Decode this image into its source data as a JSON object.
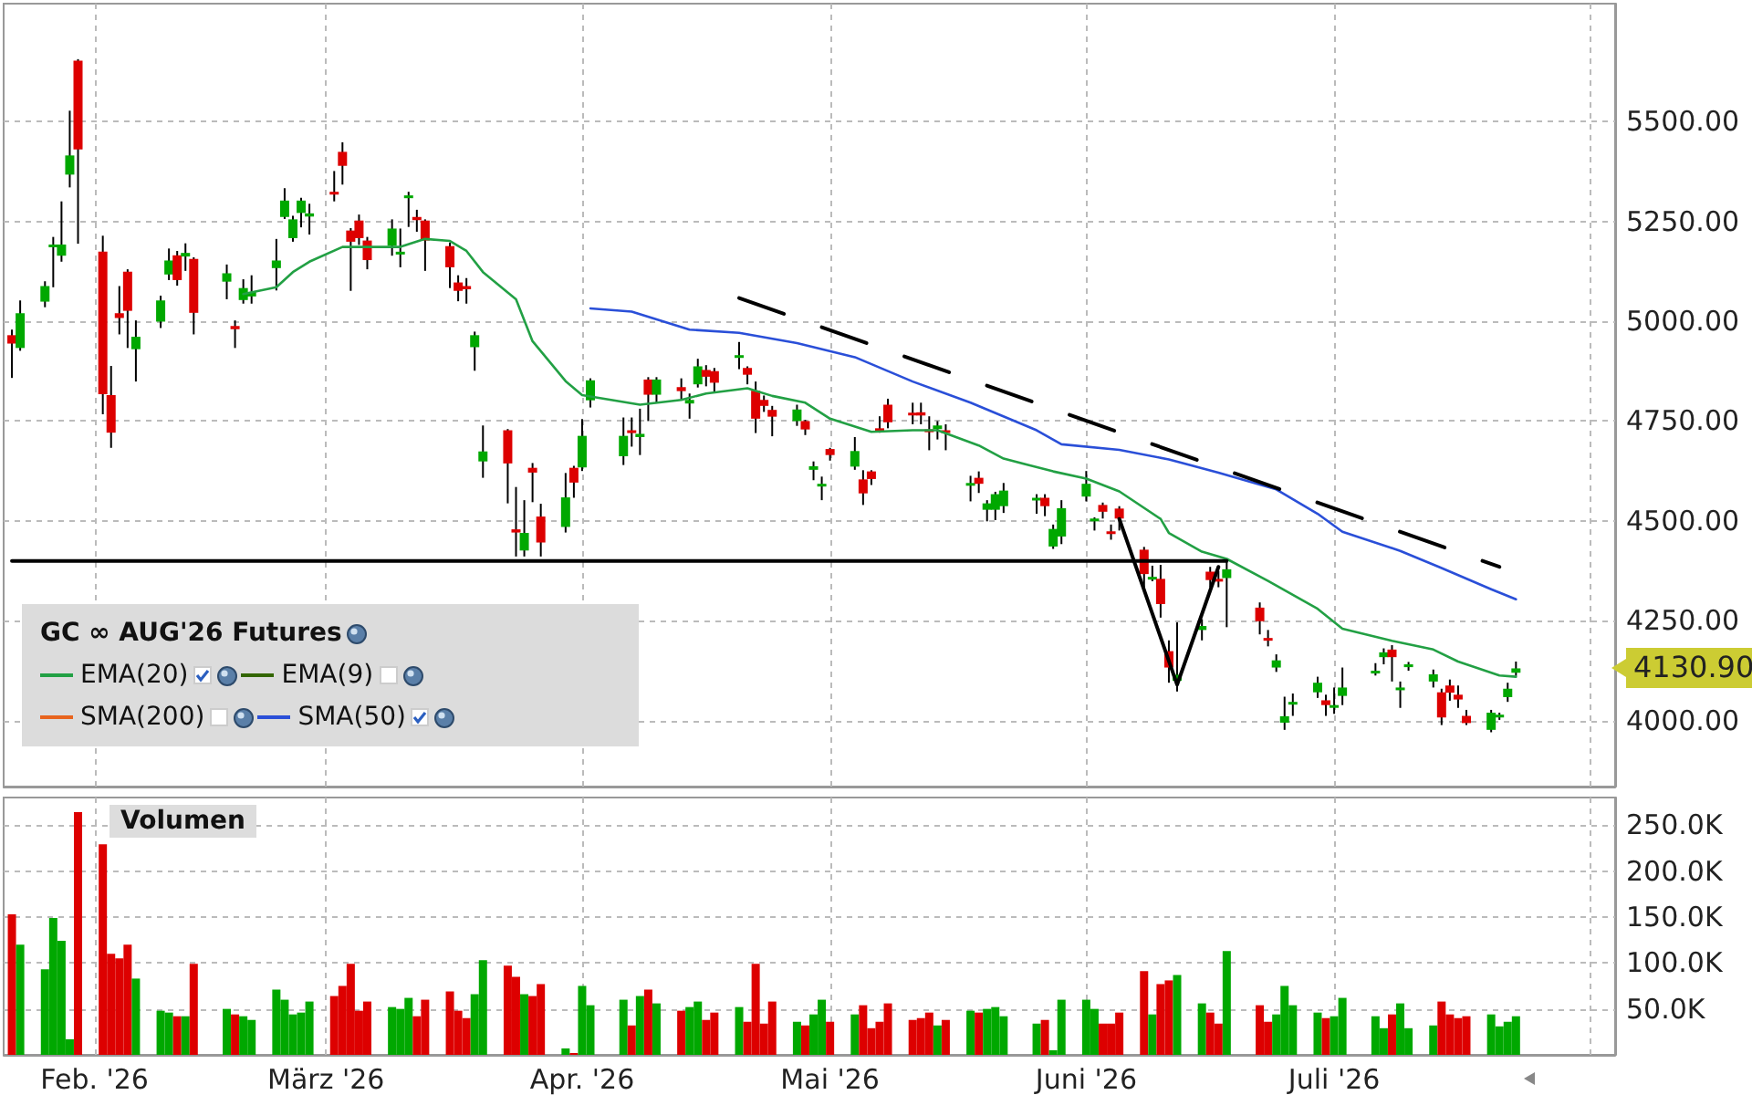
{
  "chart_data": [
    {
      "type": "candlestick",
      "legend_title": "GC ∞ AUG'26 Futures",
      "legend": "bottom left",
      "tick_labels": "y",
      "grid": true,
      "marker": "none",
      "x": [
        "2026-01-22",
        "2026-01-23",
        "2026-01-26",
        "2026-01-27",
        "2026-01-28",
        "2026-01-29",
        "2026-01-30",
        "2026-02-02",
        "2026-02-03",
        "2026-02-04",
        "2026-02-05",
        "2026-02-06",
        "2026-02-09",
        "2026-02-10",
        "2026-02-11",
        "2026-02-12",
        "2026-02-13",
        "2026-02-17",
        "2026-02-18",
        "2026-02-19",
        "2026-02-20",
        "2026-02-23",
        "2026-02-24",
        "2026-02-25",
        "2026-02-26",
        "2026-02-27",
        "2026-03-02",
        "2026-03-03",
        "2026-03-04",
        "2026-03-05",
        "2026-03-06",
        "2026-03-09",
        "2026-03-10",
        "2026-03-11",
        "2026-03-12",
        "2026-03-13",
        "2026-03-16",
        "2026-03-17",
        "2026-03-18",
        "2026-03-19",
        "2026-03-20",
        "2026-03-23",
        "2026-03-24",
        "2026-03-25",
        "2026-03-26",
        "2026-03-27",
        "2026-03-30",
        "2026-03-31",
        "2026-04-01",
        "2026-04-02",
        "2026-04-06",
        "2026-04-07",
        "2026-04-08",
        "2026-04-09",
        "2026-04-10",
        "2026-04-13",
        "2026-04-14",
        "2026-04-15",
        "2026-04-16",
        "2026-04-17",
        "2026-04-20",
        "2026-04-21",
        "2026-04-22",
        "2026-04-23",
        "2026-04-24",
        "2026-04-27",
        "2026-04-28",
        "2026-04-29",
        "2026-04-30",
        "2026-05-01",
        "2026-05-04",
        "2026-05-05",
        "2026-05-06",
        "2026-05-07",
        "2026-05-08",
        "2026-05-11",
        "2026-05-12",
        "2026-05-13",
        "2026-05-14",
        "2026-05-15",
        "2026-05-18",
        "2026-05-19",
        "2026-05-20",
        "2026-05-21",
        "2026-05-22",
        "2026-05-26",
        "2026-05-27",
        "2026-05-28",
        "2026-05-29",
        "2026-06-01",
        "2026-06-02",
        "2026-06-03",
        "2026-06-04",
        "2026-06-05",
        "2026-06-08",
        "2026-06-09",
        "2026-06-10",
        "2026-06-11",
        "2026-06-12",
        "2026-06-15",
        "2026-06-16",
        "2026-06-17",
        "2026-06-18",
        "2026-06-22",
        "2026-06-23",
        "2026-06-24",
        "2026-06-25",
        "2026-06-26",
        "2026-06-29",
        "2026-06-30",
        "2026-07-01",
        "2026-07-02",
        "2026-07-06",
        "2026-07-07",
        "2026-07-08",
        "2026-07-09",
        "2026-07-10",
        "2026-07-13",
        "2026-07-14",
        "2026-07-15",
        "2026-07-16",
        "2026-07-17",
        "2026-07-20",
        "2026-07-21",
        "2026-07-22",
        "2026-07-23"
      ],
      "ohlc": [
        [
          4965,
          4979,
          4858,
          4944
        ],
        [
          4933,
          5052,
          4926,
          5020
        ],
        [
          5049,
          5100,
          5035,
          5088
        ],
        [
          5185,
          5211,
          5085,
          5192
        ],
        [
          5164,
          5300,
          5149,
          5192
        ],
        [
          5367,
          5527,
          5335,
          5415
        ],
        [
          5652,
          5656,
          5194,
          5430
        ],
        [
          5174,
          5214,
          4767,
          4817
        ],
        [
          4815,
          4888,
          4683,
          4721
        ],
        [
          5020,
          5088,
          4967,
          5008
        ],
        [
          5124,
          5130,
          4933,
          5026
        ],
        [
          4930,
          5002,
          4849,
          4961
        ],
        [
          4999,
          5064,
          4983,
          5052
        ],
        [
          5117,
          5182,
          5103,
          5152
        ],
        [
          5165,
          5176,
          5089,
          5103
        ],
        [
          5162,
          5195,
          5126,
          5171
        ],
        [
          5156,
          5160,
          4967,
          5021
        ],
        [
          5099,
          5142,
          5055,
          5120
        ],
        [
          4988,
          5002,
          4933,
          4980
        ],
        [
          5053,
          5105,
          5044,
          5083
        ],
        [
          5062,
          5115,
          5044,
          5073
        ],
        [
          5133,
          5206,
          5077,
          5152
        ],
        [
          5261,
          5333,
          5256,
          5302
        ],
        [
          5208,
          5264,
          5199,
          5255
        ],
        [
          5271,
          5309,
          5235,
          5302
        ],
        [
          5262,
          5294,
          5217,
          5270
        ],
        [
          5324,
          5376,
          5300,
          5317
        ],
        [
          5424,
          5448,
          5342,
          5389
        ],
        [
          5227,
          5233,
          5076,
          5199
        ],
        [
          5252,
          5267,
          5191,
          5208
        ],
        [
          5202,
          5211,
          5130,
          5153
        ],
        [
          5189,
          5255,
          5164,
          5232
        ],
        [
          5167,
          5232,
          5135,
          5174
        ],
        [
          5308,
          5324,
          5236,
          5315
        ],
        [
          5261,
          5279,
          5224,
          5253
        ],
        [
          5252,
          5255,
          5126,
          5202
        ],
        [
          5188,
          5197,
          5083,
          5135
        ],
        [
          5097,
          5115,
          5050,
          5076
        ],
        [
          5088,
          5108,
          5044,
          5080
        ],
        [
          4935,
          4974,
          4876,
          4965
        ],
        [
          4649,
          4739,
          4608,
          4674
        ],
        [
          4727,
          4730,
          4544,
          4644
        ],
        [
          4479,
          4585,
          4411,
          4471
        ],
        [
          4426,
          4552,
          4411,
          4470
        ],
        [
          4633,
          4645,
          4547,
          4621
        ],
        [
          4511,
          4543,
          4411,
          4446
        ],
        [
          4485,
          4620,
          4471,
          4559
        ],
        [
          4633,
          4638,
          4558,
          4596
        ],
        [
          4634,
          4755,
          4625,
          4713
        ],
        [
          4802,
          4857,
          4784,
          4852
        ],
        [
          4662,
          4759,
          4640,
          4713
        ],
        [
          4727,
          4759,
          4686,
          4720
        ],
        [
          4710,
          4781,
          4665,
          4718
        ],
        [
          4854,
          4860,
          4750,
          4816
        ],
        [
          4816,
          4860,
          4796,
          4854
        ],
        [
          4835,
          4857,
          4803,
          4825
        ],
        [
          4794,
          4819,
          4756,
          4803
        ],
        [
          4842,
          4906,
          4834,
          4887
        ],
        [
          4878,
          4890,
          4837,
          4861
        ],
        [
          4875,
          4883,
          4823,
          4846
        ],
        [
          4909,
          4948,
          4880,
          4915
        ],
        [
          4883,
          4887,
          4842,
          4866
        ],
        [
          4826,
          4849,
          4720,
          4756
        ],
        [
          4803,
          4814,
          4773,
          4788
        ],
        [
          4778,
          4788,
          4712,
          4761
        ],
        [
          4750,
          4791,
          4738,
          4779
        ],
        [
          4750,
          4753,
          4715,
          4729
        ],
        [
          4628,
          4649,
          4602,
          4637
        ],
        [
          4587,
          4611,
          4552,
          4593
        ],
        [
          4680,
          4683,
          4651,
          4665
        ],
        [
          4636,
          4710,
          4628,
          4675
        ],
        [
          4604,
          4627,
          4540,
          4569
        ],
        [
          4624,
          4627,
          4590,
          4605
        ],
        [
          4732,
          4762,
          4721,
          4726
        ],
        [
          4791,
          4806,
          4732,
          4747
        ],
        [
          4771,
          4796,
          4742,
          4765
        ],
        [
          4772,
          4796,
          4742,
          4764
        ],
        [
          4729,
          4762,
          4677,
          4724
        ],
        [
          4730,
          4750,
          4704,
          4739
        ],
        [
          4727,
          4742,
          4677,
          4721
        ],
        [
          4589,
          4613,
          4549,
          4595
        ],
        [
          4608,
          4624,
          4570,
          4593
        ],
        [
          4528,
          4552,
          4499,
          4544
        ],
        [
          4528,
          4573,
          4502,
          4567
        ],
        [
          4537,
          4595,
          4520,
          4576
        ],
        [
          4552,
          4567,
          4518,
          4558
        ],
        [
          4558,
          4567,
          4512,
          4537
        ],
        [
          4436,
          4491,
          4430,
          4480
        ],
        [
          4461,
          4552,
          4442,
          4532
        ],
        [
          4561,
          4625,
          4549,
          4593
        ],
        [
          4499,
          4509,
          4476,
          4506
        ],
        [
          4540,
          4546,
          4506,
          4523
        ],
        [
          4474,
          4491,
          4453,
          4470
        ],
        [
          4531,
          4537,
          4476,
          4506
        ],
        [
          4428,
          4435,
          4334,
          4367
        ],
        [
          4354,
          4388,
          4349,
          4360
        ],
        [
          4355,
          4390,
          4258,
          4292
        ],
        [
          4174,
          4201,
          4095,
          4133
        ],
        [
          4100,
          4246,
          4073,
          4115
        ],
        [
          4227,
          4254,
          4201,
          4237
        ],
        [
          4373,
          4385,
          4334,
          4352
        ],
        [
          4355,
          4375,
          4334,
          4349
        ],
        [
          4357,
          4397,
          4234,
          4379
        ],
        [
          4283,
          4296,
          4216,
          4249
        ],
        [
          4207,
          4227,
          4186,
          4201
        ],
        [
          4133,
          4166,
          4122,
          4151
        ],
        [
          3995,
          4060,
          3977,
          4011
        ],
        [
          4041,
          4068,
          4012,
          4047
        ],
        [
          4071,
          4110,
          4057,
          4095
        ],
        [
          4051,
          4065,
          4012,
          4039
        ],
        [
          4033,
          4083,
          4017,
          4039
        ],
        [
          4062,
          4133,
          4039,
          4083
        ],
        [
          4119,
          4144,
          4113,
          4125
        ],
        [
          4159,
          4181,
          4141,
          4171
        ],
        [
          4178,
          4189,
          4098,
          4159
        ],
        [
          4079,
          4098,
          4032,
          4083
        ],
        [
          4134,
          4147,
          4125,
          4141
        ],
        [
          4098,
          4128,
          4083,
          4116
        ],
        [
          4071,
          4080,
          3989,
          4008
        ],
        [
          4088,
          4103,
          4050,
          4070
        ],
        [
          4065,
          4088,
          4032,
          4053
        ],
        [
          4012,
          4027,
          3989,
          3994
        ],
        [
          3977,
          4027,
          3971,
          4020
        ],
        [
          4008,
          4020,
          4002,
          4015
        ],
        [
          4059,
          4095,
          4047,
          4080
        ],
        [
          4120,
          4148,
          4112,
          4130.9
        ]
      ],
      "colors": [
        "#dd0000",
        "#00a800",
        "#00a800",
        "#00a800",
        "#00a800",
        "#00a800",
        "#dd0000",
        "#dd0000",
        "#dd0000",
        "#dd0000",
        "#dd0000",
        "#00a800",
        "#00a800",
        "#00a800",
        "#dd0000",
        "#00a800",
        "#dd0000",
        "#00a800",
        "#dd0000",
        "#00a800",
        "#00a800",
        "#00a800",
        "#00a800",
        "#00a800",
        "#00a800",
        "#00a800",
        "#dd0000",
        "#dd0000",
        "#dd0000",
        "#dd0000",
        "#dd0000",
        "#00a800",
        "#00a800",
        "#00a800",
        "#dd0000",
        "#dd0000",
        "#dd0000",
        "#dd0000",
        "#dd0000",
        "#00a800",
        "#00a800",
        "#dd0000",
        "#dd0000",
        "#00a800",
        "#dd0000",
        "#dd0000",
        "#00a800",
        "#dd0000",
        "#00a800",
        "#00a800",
        "#00a800",
        "#dd0000",
        "#00a800",
        "#dd0000",
        "#00a800",
        "#dd0000",
        "#00a800",
        "#00a800",
        "#dd0000",
        "#dd0000",
        "#00a800",
        "#dd0000",
        "#dd0000",
        "#dd0000",
        "#dd0000",
        "#00a800",
        "#dd0000",
        "#00a800",
        "#00a800",
        "#dd0000",
        "#00a800",
        "#dd0000",
        "#dd0000",
        "#dd0000",
        "#dd0000",
        "#dd0000",
        "#dd0000",
        "#dd0000",
        "#00a800",
        "#dd0000",
        "#00a800",
        "#dd0000",
        "#00a800",
        "#00a800",
        "#00a800",
        "#00a800",
        "#dd0000",
        "#00a800",
        "#00a800",
        "#00a800",
        "#00a800",
        "#dd0000",
        "#dd0000",
        "#dd0000",
        "#dd0000",
        "#00a800",
        "#dd0000",
        "#dd0000",
        "#00a800",
        "#00a800",
        "#dd0000",
        "#dd0000",
        "#00a800",
        "#dd0000",
        "#dd0000",
        "#00a800",
        "#00a800",
        "#00a800",
        "#00a800",
        "#dd0000",
        "#00a800",
        "#00a800",
        "#00a800",
        "#00a800",
        "#dd0000",
        "#00a800",
        "#00a800",
        "#00a800",
        "#dd0000",
        "#dd0000",
        "#dd0000",
        "#dd0000",
        "#00a800",
        "#00a800",
        "#00a800",
        "#00a800"
      ],
      "series": [
        {
          "type": "line",
          "name": "EMA(20)",
          "color": "#22a044",
          "x": [
            "2026-02-19",
            "2026-02-23",
            "2026-02-25",
            "2026-02-27",
            "2026-03-03",
            "2026-03-06",
            "2026-03-10",
            "2026-03-13",
            "2026-03-16",
            "2026-03-18",
            "2026-03-20",
            "2026-03-24",
            "2026-03-26",
            "2026-03-30",
            "2026-04-01",
            "2026-04-08",
            "2026-04-13",
            "2026-04-16",
            "2026-04-21",
            "2026-04-24",
            "2026-04-28",
            "2026-05-01",
            "2026-05-06",
            "2026-05-11",
            "2026-05-14",
            "2026-05-19",
            "2026-05-22",
            "2026-05-28",
            "2026-06-01",
            "2026-06-05",
            "2026-06-10",
            "2026-06-11",
            "2026-06-15",
            "2026-06-18",
            "2026-06-23",
            "2026-06-29",
            "2026-07-02",
            "2026-07-08",
            "2026-07-13",
            "2026-07-16",
            "2026-07-21",
            "2026-07-23"
          ],
          "values": [
            5068,
            5085,
            5123,
            5149,
            5186,
            5186,
            5186,
            5206,
            5201,
            5176,
            5123,
            5055,
            4950,
            4850,
            4815,
            4791,
            4803,
            4819,
            4832,
            4813,
            4796,
            4756,
            4723,
            4727,
            4727,
            4689,
            4656,
            4624,
            4606,
            4574,
            4505,
            4470,
            4423,
            4405,
            4350,
            4280,
            4230,
            4200,
            4178,
            4148,
            4113,
            4110
          ]
        },
        {
          "type": "line",
          "name": "EMA(9)",
          "color": "#336600",
          "values": [
            null,
            null,
            null,
            null,
            null,
            null,
            null,
            null,
            null,
            null,
            null,
            null,
            null,
            null,
            null,
            null,
            null,
            null,
            null,
            null,
            null,
            null,
            null,
            null,
            null,
            null,
            null,
            null,
            null,
            null,
            null,
            null,
            null,
            null,
            null,
            null,
            null,
            null,
            null,
            null,
            null,
            null,
            null,
            null,
            null,
            null,
            null,
            null,
            null,
            null,
            null,
            null,
            null,
            null,
            null,
            null,
            null,
            null,
            null,
            null,
            null,
            null,
            null,
            null,
            null,
            null,
            null,
            null,
            null,
            null,
            null,
            null,
            null,
            null,
            null,
            null,
            null,
            null,
            null,
            null,
            null,
            null,
            null,
            null,
            null,
            null,
            null,
            null,
            null,
            null,
            null,
            null,
            null,
            null,
            null,
            null,
            null,
            null,
            null,
            null,
            null,
            null,
            null,
            null,
            null,
            null,
            null,
            null,
            null,
            null,
            null,
            null,
            null,
            null,
            null,
            null,
            null,
            null,
            null,
            null,
            null,
            null,
            null,
            null,
            null,
            null
          ]
        },
        {
          "type": "line",
          "name": "SMA(200)",
          "color": "#e8641e",
          "values": [
            null,
            null,
            null,
            null,
            null,
            null,
            null,
            null,
            null,
            null,
            null,
            null,
            null,
            null,
            null,
            null,
            null,
            null,
            null,
            null,
            null,
            null,
            null,
            null,
            null,
            null,
            null,
            null,
            null,
            null,
            null,
            null,
            null,
            null,
            null,
            null,
            null,
            null,
            null,
            null,
            null,
            null,
            null,
            null,
            null,
            null,
            null,
            null,
            null,
            null,
            null,
            null,
            null,
            null,
            null,
            null,
            null,
            null,
            null,
            null,
            null,
            null,
            null,
            null,
            null,
            null,
            null,
            null,
            null,
            null,
            null,
            null,
            null,
            null,
            null,
            null,
            null,
            null,
            null,
            null,
            null,
            null,
            null,
            null,
            null,
            null,
            null,
            null,
            null,
            null,
            null,
            null,
            null,
            null,
            null,
            null,
            null,
            null,
            null,
            null,
            null,
            null,
            null,
            null,
            null,
            null,
            null,
            null,
            null,
            null,
            null,
            null,
            null,
            null,
            null,
            null,
            null,
            null,
            null,
            null,
            null,
            null,
            null,
            null,
            null,
            null
          ]
        },
        {
          "type": "line",
          "name": "SMA(50)",
          "color": "#2a4fd8",
          "x": [
            "2026-04-02",
            "2026-04-07",
            "2026-04-14",
            "2026-04-20",
            "2026-04-27",
            "2026-05-04",
            "2026-05-11",
            "2026-05-18",
            "2026-05-26",
            "2026-05-29",
            "2026-06-05",
            "2026-06-11",
            "2026-06-17",
            "2026-06-24",
            "2026-06-29",
            "2026-07-02",
            "2026-07-09",
            "2026-07-14",
            "2026-07-20",
            "2026-07-23"
          ],
          "values": [
            5032,
            5024,
            4979,
            4971,
            4945,
            4910,
            4849,
            4796,
            4727,
            4692,
            4678,
            4654,
            4621,
            4579,
            4518,
            4473,
            4425,
            4382,
            4329,
            4304
          ]
        },
        {
          "type": "line",
          "color": "#000000",
          "x": [
            "2026-01-22",
            "2026-06-18"
          ],
          "values": [
            4400,
            4400
          ]
        },
        {
          "type": "line",
          "color": "#000000",
          "line_style": "dashed",
          "x": [
            "2026-04-20",
            "2026-07-21"
          ],
          "values": [
            5058,
            4385
          ]
        },
        {
          "type": "line",
          "color": "#000000",
          "x": [
            "2026-06-05",
            "2026-06-12",
            "2026-06-17"
          ],
          "values": [
            4505,
            4090,
            4385
          ]
        }
      ],
      "annotations": [
        "4130.90"
      ],
      "xlim": [
        "2026-01-21",
        "2026-08-04"
      ],
      "xticks": [
        {
          "value": "2026-02-01",
          "label": null
        },
        {
          "value": "2026-03-01",
          "label": null
        },
        {
          "value": "2026-04-01",
          "label": null
        },
        {
          "value": "2026-05-01",
          "label": null
        },
        {
          "value": "2026-06-01",
          "label": null
        },
        {
          "value": "2026-07-01",
          "label": null
        },
        {
          "value": "2026-08-01",
          "label": null
        }
      ],
      "ylim": [
        3835,
        5795
      ],
      "yticks": [
        {
          "value": 4000,
          "label": "4000.00"
        },
        {
          "value": 4250,
          "label": "4250.00"
        },
        {
          "value": 4500,
          "label": "4500.00"
        },
        {
          "value": 4750,
          "label": "4750.00"
        },
        {
          "value": 5000,
          "label": "5000.00"
        },
        {
          "value": 5250,
          "label": "5250.00"
        },
        {
          "value": 5500,
          "label": "5500.00"
        }
      ]
    },
    {
      "type": "bar",
      "title": "Volumen",
      "grid": true,
      "x": [
        "2026-01-22",
        "2026-01-23",
        "2026-01-26",
        "2026-01-27",
        "2026-01-28",
        "2026-01-29",
        "2026-01-30",
        "2026-02-02",
        "2026-02-03",
        "2026-02-04",
        "2026-02-05",
        "2026-02-06",
        "2026-02-09",
        "2026-02-10",
        "2026-02-11",
        "2026-02-12",
        "2026-02-13",
        "2026-02-17",
        "2026-02-18",
        "2026-02-19",
        "2026-02-20",
        "2026-02-23",
        "2026-02-24",
        "2026-02-25",
        "2026-02-26",
        "2026-02-27",
        "2026-03-02",
        "2026-03-03",
        "2026-03-04",
        "2026-03-05",
        "2026-03-06",
        "2026-03-09",
        "2026-03-10",
        "2026-03-11",
        "2026-03-12",
        "2026-03-13",
        "2026-03-16",
        "2026-03-17",
        "2026-03-18",
        "2026-03-19",
        "2026-03-20",
        "2026-03-23",
        "2026-03-24",
        "2026-03-25",
        "2026-03-26",
        "2026-03-27",
        "2026-03-30",
        "2026-03-31",
        "2026-04-01",
        "2026-04-02",
        "2026-04-06",
        "2026-04-07",
        "2026-04-08",
        "2026-04-09",
        "2026-04-10",
        "2026-04-13",
        "2026-04-14",
        "2026-04-15",
        "2026-04-16",
        "2026-04-17",
        "2026-04-20",
        "2026-04-21",
        "2026-04-22",
        "2026-04-23",
        "2026-04-24",
        "2026-04-27",
        "2026-04-28",
        "2026-04-29",
        "2026-04-30",
        "2026-05-01",
        "2026-05-04",
        "2026-05-05",
        "2026-05-06",
        "2026-05-07",
        "2026-05-08",
        "2026-05-11",
        "2026-05-12",
        "2026-05-13",
        "2026-05-14",
        "2026-05-15",
        "2026-05-18",
        "2026-05-19",
        "2026-05-20",
        "2026-05-21",
        "2026-05-22",
        "2026-05-26",
        "2026-05-27",
        "2026-05-28",
        "2026-05-29",
        "2026-06-01",
        "2026-06-02",
        "2026-06-03",
        "2026-06-04",
        "2026-06-05",
        "2026-06-08",
        "2026-06-09",
        "2026-06-10",
        "2026-06-11",
        "2026-06-12",
        "2026-06-15",
        "2026-06-16",
        "2026-06-17",
        "2026-06-18",
        "2026-06-22",
        "2026-06-23",
        "2026-06-24",
        "2026-06-25",
        "2026-06-26",
        "2026-06-29",
        "2026-06-30",
        "2026-07-01",
        "2026-07-02",
        "2026-07-06",
        "2026-07-07",
        "2026-07-08",
        "2026-07-09",
        "2026-07-10",
        "2026-07-13",
        "2026-07-14",
        "2026-07-15",
        "2026-07-16",
        "2026-07-17",
        "2026-07-20",
        "2026-07-21",
        "2026-07-22",
        "2026-07-23"
      ],
      "values": [
        153000,
        120000,
        93000,
        149000,
        124000,
        17000,
        264000,
        229000,
        110000,
        105000,
        120000,
        83000,
        48000,
        46000,
        42000,
        42000,
        99000,
        50000,
        44000,
        42000,
        38000,
        71000,
        60000,
        44000,
        46000,
        58000,
        64000,
        75000,
        99000,
        48000,
        58000,
        52000,
        50000,
        62000,
        42000,
        60000,
        69000,
        48000,
        40000,
        66000,
        103000,
        97000,
        85000,
        66000,
        64000,
        77000,
        7000,
        2000,
        75000,
        54000,
        60000,
        32000,
        64000,
        71000,
        56000,
        48000,
        52000,
        58000,
        38000,
        46000,
        52000,
        36000,
        99000,
        34000,
        58000,
        36000,
        32000,
        44000,
        60000,
        36000,
        44000,
        54000,
        29000,
        36000,
        56000,
        38000,
        40000,
        46000,
        32000,
        38000,
        48000,
        46000,
        50000,
        52000,
        42000,
        34000,
        38000,
        5000,
        60000,
        60000,
        50000,
        34000,
        34000,
        46000,
        91000,
        44000,
        77000,
        81000,
        87000,
        56000,
        46000,
        34000,
        113000,
        54000,
        36000,
        44000,
        75000,
        54000,
        46000,
        40000,
        42000,
        62000,
        42000,
        29000,
        44000,
        56000,
        29000,
        32000,
        58000,
        44000,
        40000,
        42000,
        44000,
        31000,
        36000,
        42000
      ],
      "colors": [
        "#dd0000",
        "#00a800",
        "#00a800",
        "#00a800",
        "#00a800",
        "#00a800",
        "#dd0000",
        "#dd0000",
        "#dd0000",
        "#dd0000",
        "#dd0000",
        "#00a800",
        "#00a800",
        "#00a800",
        "#dd0000",
        "#00a800",
        "#dd0000",
        "#00a800",
        "#dd0000",
        "#00a800",
        "#00a800",
        "#00a800",
        "#00a800",
        "#00a800",
        "#00a800",
        "#00a800",
        "#dd0000",
        "#dd0000",
        "#dd0000",
        "#dd0000",
        "#dd0000",
        "#00a800",
        "#00a800",
        "#00a800",
        "#dd0000",
        "#dd0000",
        "#dd0000",
        "#dd0000",
        "#dd0000",
        "#00a800",
        "#00a800",
        "#dd0000",
        "#dd0000",
        "#00a800",
        "#dd0000",
        "#dd0000",
        "#00a800",
        "#dd0000",
        "#00a800",
        "#00a800",
        "#00a800",
        "#dd0000",
        "#00a800",
        "#dd0000",
        "#00a800",
        "#dd0000",
        "#00a800",
        "#00a800",
        "#dd0000",
        "#dd0000",
        "#00a800",
        "#dd0000",
        "#dd0000",
        "#dd0000",
        "#dd0000",
        "#00a800",
        "#dd0000",
        "#00a800",
        "#00a800",
        "#dd0000",
        "#00a800",
        "#dd0000",
        "#dd0000",
        "#dd0000",
        "#dd0000",
        "#dd0000",
        "#dd0000",
        "#dd0000",
        "#00a800",
        "#dd0000",
        "#00a800",
        "#dd0000",
        "#00a800",
        "#00a800",
        "#00a800",
        "#00a800",
        "#dd0000",
        "#00a800",
        "#00a800",
        "#00a800",
        "#00a800",
        "#dd0000",
        "#dd0000",
        "#dd0000",
        "#dd0000",
        "#00a800",
        "#dd0000",
        "#dd0000",
        "#00a800",
        "#00a800",
        "#dd0000",
        "#dd0000",
        "#00a800",
        "#dd0000",
        "#dd0000",
        "#00a800",
        "#00a800",
        "#00a800",
        "#00a800",
        "#dd0000",
        "#00a800",
        "#00a800",
        "#00a800",
        "#00a800",
        "#dd0000",
        "#00a800",
        "#00a800",
        "#00a800",
        "#dd0000",
        "#dd0000",
        "#dd0000",
        "#dd0000",
        "#00a800",
        "#00a800",
        "#00a800",
        "#00a800"
      ],
      "xlim": [
        "2026-01-21",
        "2026-08-04"
      ],
      "xticks": [
        {
          "value": "2026-02-01",
          "label": "Feb. '26"
        },
        {
          "value": "2026-03-01",
          "label": "März '26"
        },
        {
          "value": "2026-04-01",
          "label": "Apr. '26"
        },
        {
          "value": "2026-05-01",
          "label": "Mai '26"
        },
        {
          "value": "2026-06-01",
          "label": "Juni '26"
        },
        {
          "value": "2026-07-01",
          "label": "Juli '26"
        },
        {
          "value": "2026-08-01",
          "label": null
        }
      ],
      "ylim": [
        0,
        280000
      ],
      "yticks": [
        {
          "value": 50000,
          "label": "50.0K"
        },
        {
          "value": 100000,
          "label": "100.0K"
        },
        {
          "value": 150000,
          "label": "150.0K"
        },
        {
          "value": 200000,
          "label": "200.0K"
        },
        {
          "value": 250000,
          "label": "250.0K"
        }
      ]
    }
  ]
}
